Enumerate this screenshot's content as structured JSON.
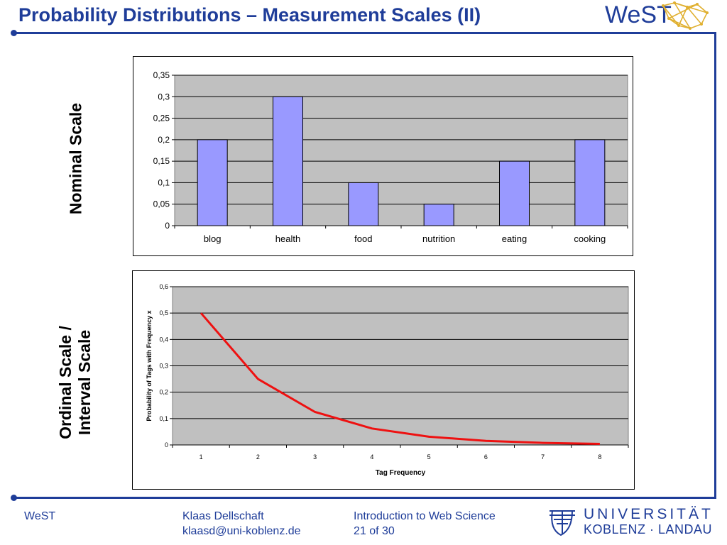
{
  "slide": {
    "title": "Probability Distributions – Measurement Scales (II)",
    "logo": "WeST",
    "side_label_1": "Nominal Scale",
    "side_label_2_line1": "Ordinal Scale /",
    "side_label_2_line2": "Interval Scale"
  },
  "footer": {
    "left": "WeST",
    "author": "Klaas Dellschaft",
    "email": "klaasd@uni-koblenz.de",
    "course": "Introduction to Web Science",
    "page": "21 of 30",
    "university_line1": "UNIVERSITÄT",
    "university_line2": "KOBLENZ · LANDAU"
  },
  "colors": {
    "accent": "#1f3d99",
    "bar_fill": "#9999ff",
    "plot_bg": "#c0c0c0",
    "line": "#ee1111"
  },
  "chart_data": [
    {
      "type": "bar",
      "categories": [
        "blog",
        "health",
        "food",
        "nutrition",
        "eating",
        "cooking"
      ],
      "values": [
        0.2,
        0.3,
        0.1,
        0.05,
        0.15,
        0.2
      ],
      "ylim": [
        0,
        0.35
      ],
      "yticks": [
        "0",
        "0,05",
        "0,1",
        "0,15",
        "0,2",
        "0,25",
        "0,3",
        "0,35"
      ],
      "xlabel": "",
      "ylabel": "",
      "grid": true
    },
    {
      "type": "line",
      "x": [
        1,
        2,
        3,
        4,
        5,
        6,
        7,
        8
      ],
      "y": [
        0.5,
        0.25,
        0.125,
        0.0625,
        0.03125,
        0.015625,
        0.0078125,
        0.00390625
      ],
      "xticks": [
        "1",
        "2",
        "3",
        "4",
        "5",
        "6",
        "7",
        "8"
      ],
      "yticks": [
        "0",
        "0,1",
        "0,2",
        "0,3",
        "0,4",
        "0,5",
        "0,6"
      ],
      "ylim": [
        0,
        0.6
      ],
      "xlabel": "Tag Frequency",
      "ylabel": "Probability of Tags with Frequency x",
      "grid": true
    }
  ]
}
